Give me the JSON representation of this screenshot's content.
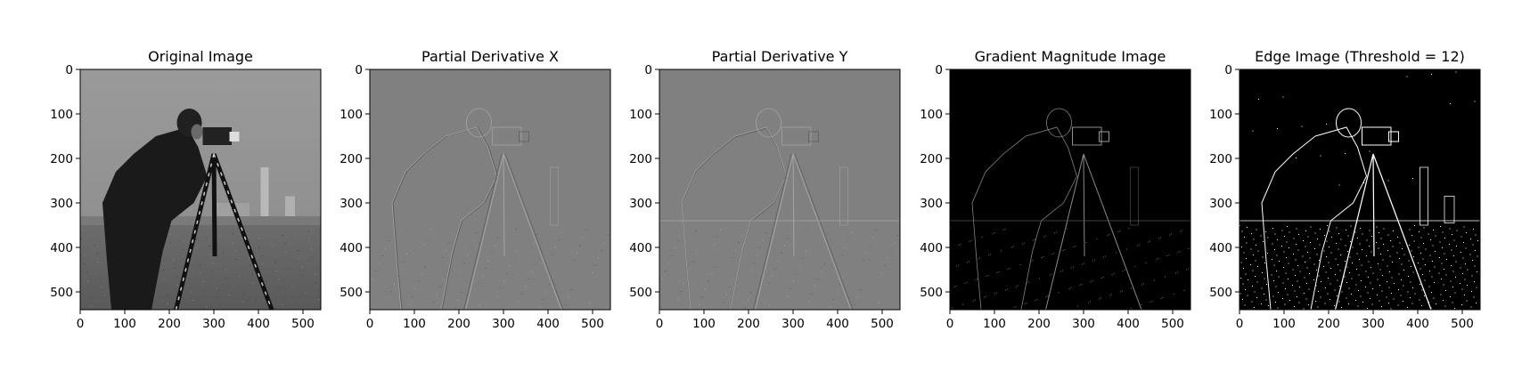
{
  "figure": {
    "panels": [
      {
        "id": "original",
        "title": "Original Image",
        "style": "original"
      },
      {
        "id": "dx",
        "title": "Partial Derivative X",
        "style": "dx"
      },
      {
        "id": "dy",
        "title": "Partial Derivative Y",
        "style": "dy"
      },
      {
        "id": "grad",
        "title": "Gradient Magnitude Image",
        "style": "grad"
      },
      {
        "id": "edge",
        "title": "Edge Image (Threshold = 12)",
        "style": "edge"
      }
    ],
    "image_size": [
      540,
      540
    ],
    "x_ticks": [
      "0",
      "100",
      "200",
      "300",
      "400",
      "500"
    ],
    "y_ticks": [
      "0",
      "100",
      "200",
      "300",
      "400",
      "500"
    ],
    "x_tick_values": [
      0,
      100,
      200,
      300,
      400,
      500
    ],
    "y_tick_values": [
      0,
      100,
      200,
      300,
      400,
      500
    ],
    "colors": {
      "original_sky": "#8c8c8c",
      "derivative_bg": "#808080",
      "gradient_bg": "#000000",
      "edge_bg": "#000000",
      "edge_fg": "#ffffff"
    }
  }
}
